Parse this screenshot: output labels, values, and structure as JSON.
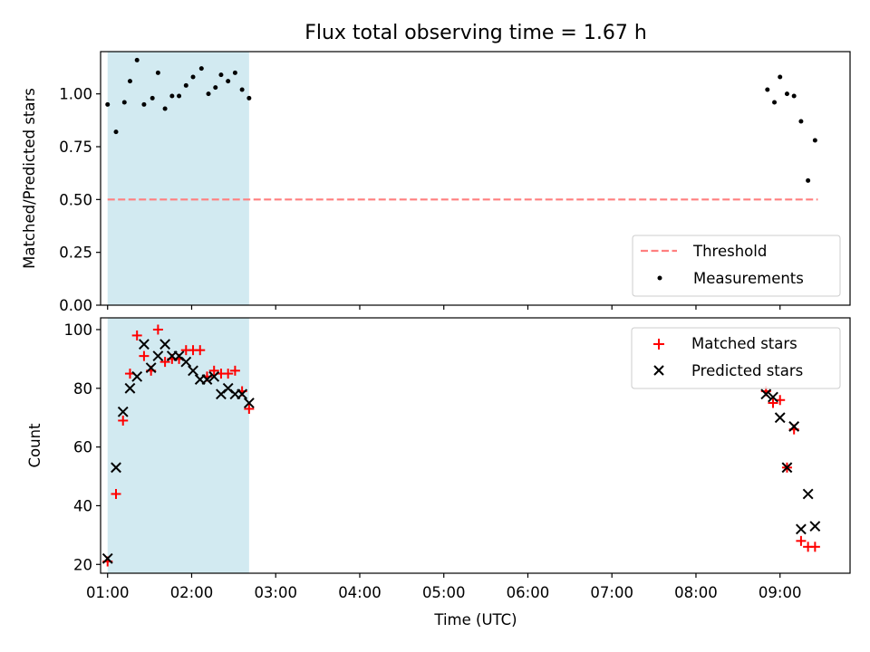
{
  "figure_title": "Flux total observing time = 1.67 h",
  "chart_data": [
    {
      "type": "scatter",
      "panel": "top",
      "title": "Flux total observing time = 1.67 h",
      "xlabel": "",
      "ylabel": "Matched/Predicted stars",
      "xlim": [
        "00:55",
        "09:50"
      ],
      "ylim": [
        0.0,
        1.2
      ],
      "y_ticks": [
        0.0,
        0.25,
        0.5,
        0.75,
        1.0
      ],
      "y_tick_labels": [
        "0.00",
        "0.25",
        "0.50",
        "0.75",
        "1.00"
      ],
      "grid": false,
      "legend_position": "lower-right",
      "shaded_interval": {
        "start": "01:00",
        "end": "02:41",
        "color": "#add8e6"
      },
      "series": [
        {
          "name": "Threshold",
          "kind": "dashed-line",
          "color": "#ff7f7f",
          "points": [
            {
              "x": "01:00",
              "y": 0.5
            },
            {
              "x": "09:27",
              "y": 0.5
            }
          ]
        },
        {
          "name": "Measurements",
          "kind": "dot",
          "color": "#000000",
          "points": [
            {
              "x": "01:00",
              "y": 0.95
            },
            {
              "x": "01:06",
              "y": 0.82
            },
            {
              "x": "01:12",
              "y": 0.96
            },
            {
              "x": "01:16",
              "y": 1.06
            },
            {
              "x": "01:21",
              "y": 1.16
            },
            {
              "x": "01:26",
              "y": 0.95
            },
            {
              "x": "01:32",
              "y": 0.98
            },
            {
              "x": "01:36",
              "y": 1.1
            },
            {
              "x": "01:41",
              "y": 0.93
            },
            {
              "x": "01:46",
              "y": 0.99
            },
            {
              "x": "01:51",
              "y": 0.99
            },
            {
              "x": "01:56",
              "y": 1.04
            },
            {
              "x": "02:01",
              "y": 1.08
            },
            {
              "x": "02:07",
              "y": 1.12
            },
            {
              "x": "02:12",
              "y": 1.0
            },
            {
              "x": "02:17",
              "y": 1.03
            },
            {
              "x": "02:21",
              "y": 1.09
            },
            {
              "x": "02:26",
              "y": 1.06
            },
            {
              "x": "02:31",
              "y": 1.1
            },
            {
              "x": "02:36",
              "y": 1.02
            },
            {
              "x": "02:41",
              "y": 0.98
            },
            {
              "x": "08:51",
              "y": 1.02
            },
            {
              "x": "08:56",
              "y": 0.96
            },
            {
              "x": "09:00",
              "y": 1.08
            },
            {
              "x": "09:05",
              "y": 1.0
            },
            {
              "x": "09:10",
              "y": 0.99
            },
            {
              "x": "09:15",
              "y": 0.87
            },
            {
              "x": "09:20",
              "y": 0.59
            },
            {
              "x": "09:25",
              "y": 0.78
            }
          ]
        }
      ]
    },
    {
      "type": "scatter",
      "panel": "bottom",
      "xlabel": "Time (UTC)",
      "ylabel": "Count",
      "xlim": [
        "00:55",
        "09:50"
      ],
      "ylim": [
        17,
        104
      ],
      "x_ticks": [
        "01:00",
        "02:00",
        "03:00",
        "04:00",
        "05:00",
        "06:00",
        "07:00",
        "08:00",
        "09:00"
      ],
      "y_ticks": [
        20,
        40,
        60,
        80,
        100
      ],
      "grid": false,
      "legend_position": "upper-right",
      "shaded_interval": {
        "start": "01:00",
        "end": "02:41",
        "color": "#add8e6"
      },
      "series": [
        {
          "name": "Matched stars",
          "marker": "plus",
          "color": "#ff0000",
          "points": [
            {
              "x": "01:00",
              "y": 21
            },
            {
              "x": "01:06",
              "y": 44
            },
            {
              "x": "01:11",
              "y": 69
            },
            {
              "x": "01:16",
              "y": 85
            },
            {
              "x": "01:21",
              "y": 98
            },
            {
              "x": "01:26",
              "y": 91
            },
            {
              "x": "01:31",
              "y": 86
            },
            {
              "x": "01:36",
              "y": 100
            },
            {
              "x": "01:41",
              "y": 89
            },
            {
              "x": "01:46",
              "y": 90
            },
            {
              "x": "01:51",
              "y": 90
            },
            {
              "x": "01:56",
              "y": 93
            },
            {
              "x": "02:01",
              "y": 93
            },
            {
              "x": "02:06",
              "y": 93
            },
            {
              "x": "02:11",
              "y": 84
            },
            {
              "x": "02:16",
              "y": 86
            },
            {
              "x": "02:21",
              "y": 85
            },
            {
              "x": "02:26",
              "y": 85
            },
            {
              "x": "02:31",
              "y": 86
            },
            {
              "x": "02:36",
              "y": 79
            },
            {
              "x": "02:41",
              "y": 73
            },
            {
              "x": "08:50",
              "y": 79
            },
            {
              "x": "08:55",
              "y": 75
            },
            {
              "x": "09:00",
              "y": 76
            },
            {
              "x": "09:05",
              "y": 53
            },
            {
              "x": "09:10",
              "y": 66
            },
            {
              "x": "09:15",
              "y": 28
            },
            {
              "x": "09:20",
              "y": 26
            },
            {
              "x": "09:25",
              "y": 26
            }
          ]
        },
        {
          "name": "Predicted stars",
          "marker": "x",
          "color": "#000000",
          "points": [
            {
              "x": "01:00",
              "y": 22
            },
            {
              "x": "01:06",
              "y": 53
            },
            {
              "x": "01:11",
              "y": 72
            },
            {
              "x": "01:16",
              "y": 80
            },
            {
              "x": "01:21",
              "y": 84
            },
            {
              "x": "01:26",
              "y": 95
            },
            {
              "x": "01:31",
              "y": 87
            },
            {
              "x": "01:36",
              "y": 91
            },
            {
              "x": "01:41",
              "y": 95
            },
            {
              "x": "01:46",
              "y": 91
            },
            {
              "x": "01:51",
              "y": 91
            },
            {
              "x": "01:56",
              "y": 89
            },
            {
              "x": "02:01",
              "y": 86
            },
            {
              "x": "02:06",
              "y": 83
            },
            {
              "x": "02:11",
              "y": 83
            },
            {
              "x": "02:16",
              "y": 84
            },
            {
              "x": "02:21",
              "y": 78
            },
            {
              "x": "02:26",
              "y": 80
            },
            {
              "x": "02:31",
              "y": 78
            },
            {
              "x": "02:36",
              "y": 78
            },
            {
              "x": "02:41",
              "y": 75
            },
            {
              "x": "08:50",
              "y": 78
            },
            {
              "x": "08:55",
              "y": 77
            },
            {
              "x": "09:00",
              "y": 70
            },
            {
              "x": "09:05",
              "y": 53
            },
            {
              "x": "09:10",
              "y": 67
            },
            {
              "x": "09:15",
              "y": 32
            },
            {
              "x": "09:20",
              "y": 44
            },
            {
              "x": "09:25",
              "y": 33
            }
          ]
        }
      ]
    }
  ]
}
